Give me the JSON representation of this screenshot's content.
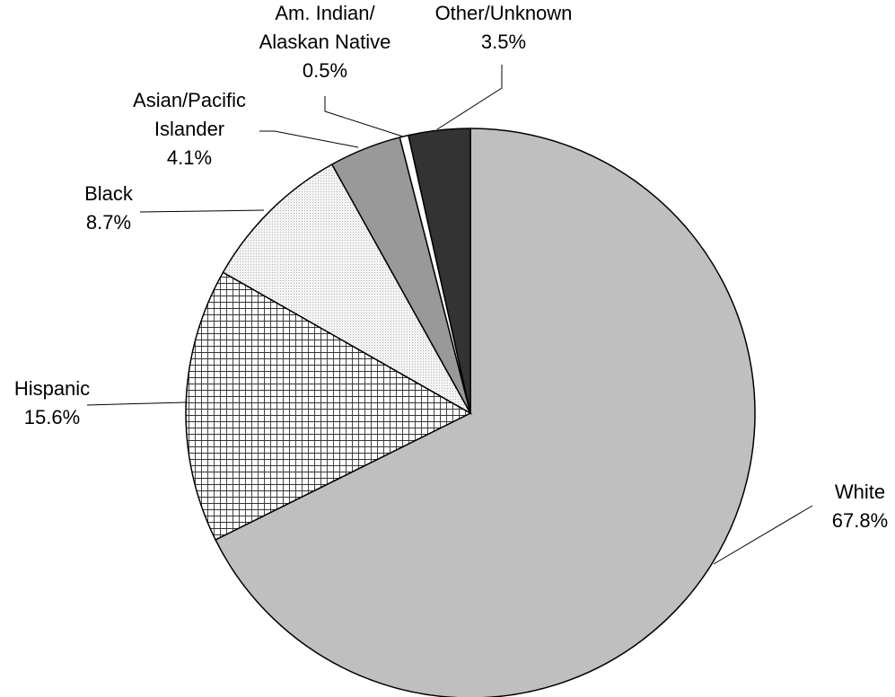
{
  "chart_data": {
    "type": "pie",
    "start_angle_deg": 0,
    "direction": "clockwise",
    "slices": [
      {
        "label": "White",
        "value": 67.8,
        "value_label": "67.8%",
        "color": "#bfbfbf",
        "fill": "solid"
      },
      {
        "label": "Hispanic",
        "value": 15.6,
        "value_label": "15.6%",
        "color": "#ffffff",
        "fill": "grid"
      },
      {
        "label": "Black",
        "value": 8.7,
        "value_label": "8.7%",
        "color": "#f2f2f2",
        "fill": "dots"
      },
      {
        "label": "Asian/Pacific Islander",
        "value": 4.1,
        "value_label": "4.1%",
        "color": "#999999",
        "fill": "solid"
      },
      {
        "label": "Am. Indian/ Alaskan Native",
        "value": 0.5,
        "value_label": "0.5%",
        "color": "#ffffff",
        "fill": "solid"
      },
      {
        "label": "Other/Unknown",
        "value": 3.5,
        "value_label": "3.5%",
        "color": "#333333",
        "fill": "solid"
      }
    ]
  }
}
